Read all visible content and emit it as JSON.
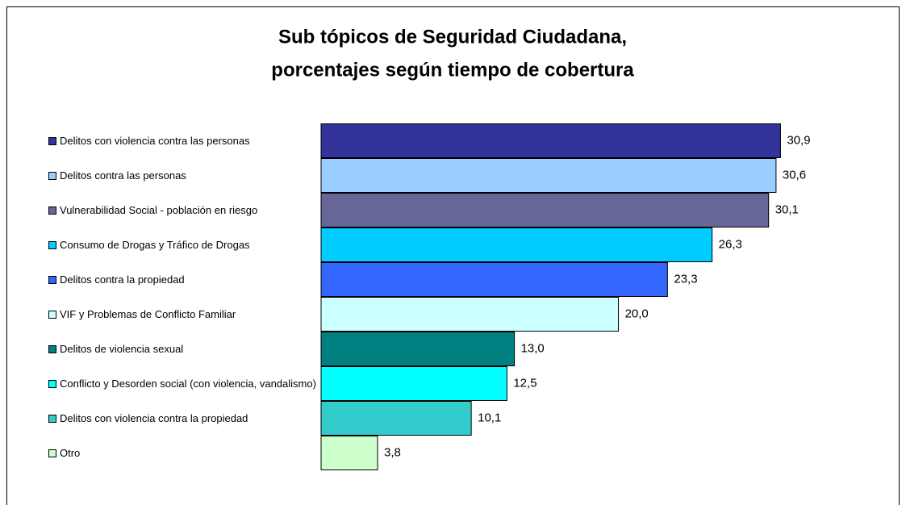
{
  "chart_data": {
    "type": "bar",
    "orientation": "horizontal",
    "title": [
      "Sub tópicos de Seguridad Ciudadana,",
      "porcentajes según tiempo de cobertura"
    ],
    "categories": [
      "Delitos con violencia contra las personas",
      "Delitos contra las personas",
      "Vulnerabilidad Social - población en riesgo",
      "Consumo de Drogas y Tráfico de Drogas",
      "Delitos  contra la propiedad",
      "VIF y Problemas de Conflicto Familiar",
      "Delitos de violencia sexual",
      "Conflicto y Desorden social (con violencia, vandalismo)",
      "Delitos con violencia contra la propiedad",
      "Otro"
    ],
    "values": [
      30.9,
      30.6,
      30.1,
      26.3,
      23.3,
      20.0,
      13.0,
      12.5,
      10.1,
      3.8
    ],
    "value_labels": [
      "30,9",
      "30,6",
      "30,1",
      "26,3",
      "23,3",
      "20,0",
      "13,0",
      "12,5",
      "10,1",
      "3,8"
    ],
    "colors": [
      "#333399",
      "#99ccff",
      "#666699",
      "#00ccff",
      "#3366ff",
      "#ccffff",
      "#008080",
      "#00ffff",
      "#33cccc",
      "#ccffcc"
    ],
    "xlim": [
      0,
      35
    ],
    "grid": false,
    "legend": "left"
  }
}
